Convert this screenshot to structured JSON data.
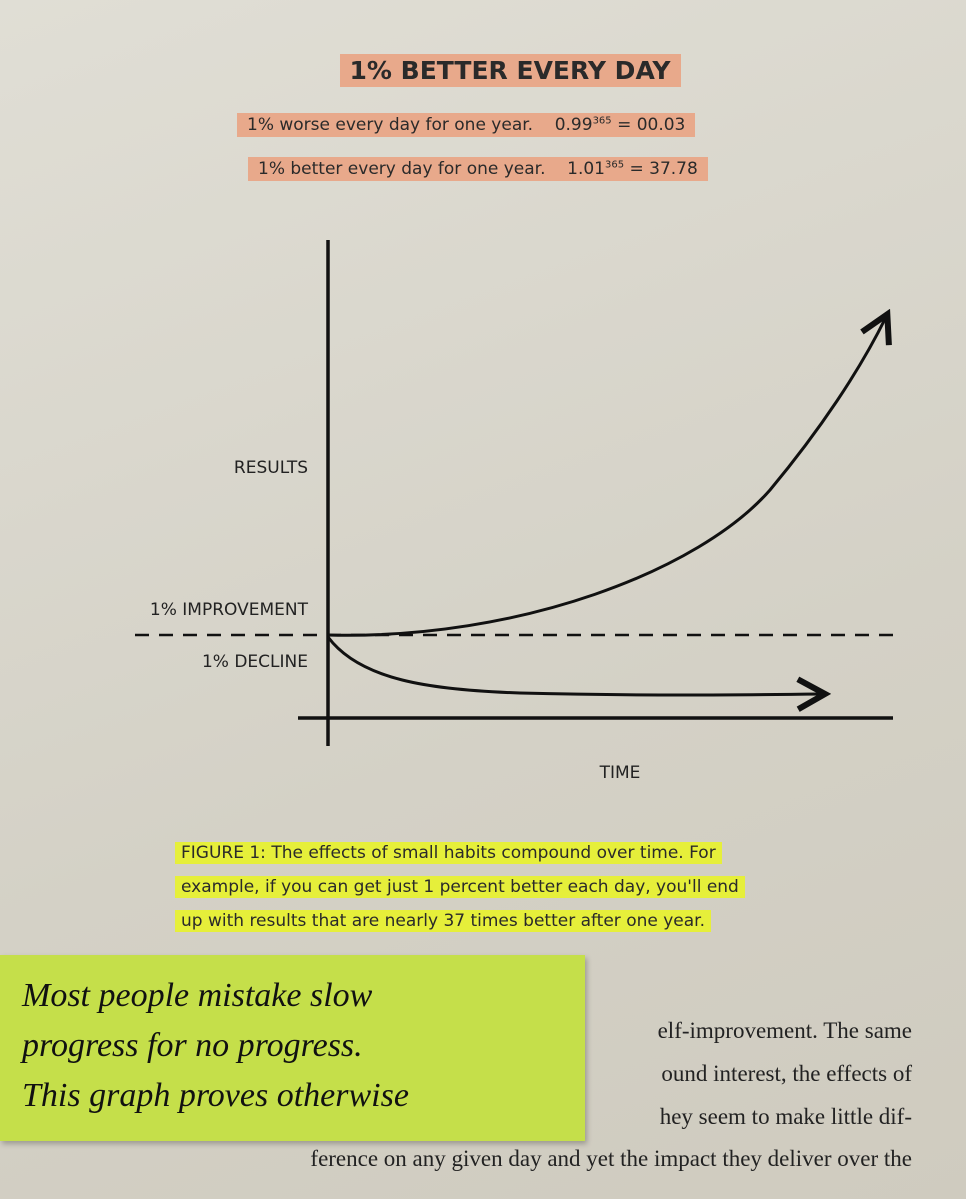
{
  "figure": {
    "title": "1% BETTER EVERY DAY",
    "formulas": [
      {
        "text": "1% worse every day for one year.",
        "base": "0.99",
        "exponent": "365",
        "result": "= 00.03"
      },
      {
        "text": "1% better every day for one year.",
        "base": "1.01",
        "exponent": "365",
        "result": "= 37.78"
      }
    ],
    "labels": {
      "results": "RESULTS",
      "improvement": "1% IMPROVEMENT",
      "decline": "1% DECLINE",
      "time": "TIME"
    },
    "caption": [
      "FIGURE 1: The effects of small habits compound over time. For",
      "example, if you can get just 1 percent better each day, you'll end",
      "up with results that are nearly 37 times better after one year."
    ]
  },
  "note": [
    "Most people mistake slow",
    "progress for no progress.",
    "This graph proves otherwise"
  ],
  "body": [
    "elf-improvement. The same",
    "ound interest, the effects of",
    "hey seem to make little dif-",
    "ference on any given day and yet the impact they deliver over the"
  ]
}
